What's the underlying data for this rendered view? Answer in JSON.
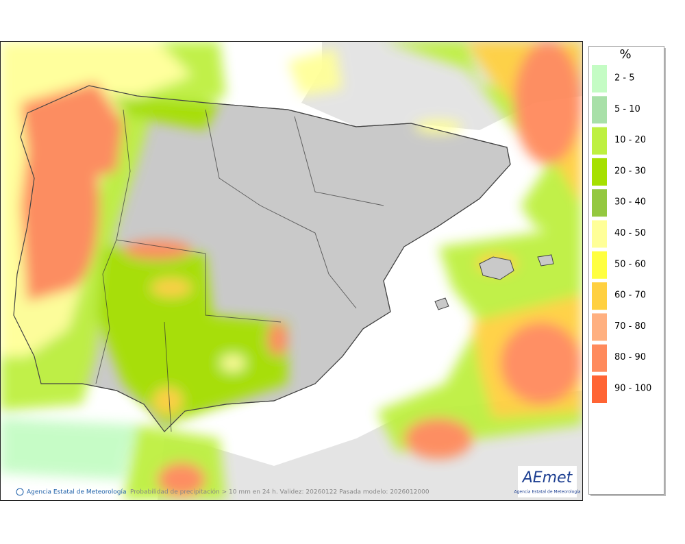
{
  "legend": {
    "title": "%",
    "items": [
      {
        "label": "2 - 5",
        "color": "#c4fcc4"
      },
      {
        "label": "5 - 10",
        "color": "#a8e0a8"
      },
      {
        "label": "10 - 20",
        "color": "#bef040"
      },
      {
        "label": "20 - 30",
        "color": "#a6e000"
      },
      {
        "label": "30 - 40",
        "color": "#94c840"
      },
      {
        "label": "40 - 50",
        "color": "#ffff98"
      },
      {
        "label": "50 - 60",
        "color": "#ffff40"
      },
      {
        "label": "60 - 70",
        "color": "#ffd040"
      },
      {
        "label": "70 - 80",
        "color": "#ffb080"
      },
      {
        "label": "80 - 90",
        "color": "#ff8a5c"
      },
      {
        "label": "90 - 100",
        "color": "#ff6434"
      }
    ]
  },
  "footer": {
    "credit": "Agencia Estatal de Meteorología",
    "caption": "Probabilidad de precipitación > 10 mm en 24 h. Validez: 20260122 Pasada modelo: 2026012000"
  },
  "logo": {
    "name": "AEmet",
    "subtitle": "Agencia Estatal de Meteorología"
  }
}
